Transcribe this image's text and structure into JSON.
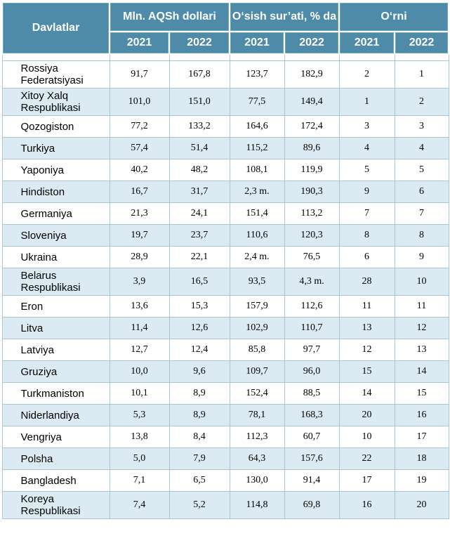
{
  "header": {
    "country_label": "Davlatlar",
    "group1_label": "Mln. AQSh dollari",
    "group2_label": "O‘sish sur’ati, % da",
    "group3_label": "O‘rni",
    "years": [
      "2021",
      "2022",
      "2021",
      "2022",
      "2021",
      "2022"
    ]
  },
  "rows": [
    {
      "country": "Rossiya Federatsiyasi",
      "usd_2021": "91,7",
      "usd_2022": "167,8",
      "growth_2021": "123,7",
      "growth_2022": "182,9",
      "rank_2021": "2",
      "rank_2022": "1"
    },
    {
      "country": "Xitoy Xalq Respublikasi",
      "usd_2021": "101,0",
      "usd_2022": "151,0",
      "growth_2021": "77,5",
      "growth_2022": "149,4",
      "rank_2021": "1",
      "rank_2022": "2"
    },
    {
      "country": "Qozogiston",
      "usd_2021": "77,2",
      "usd_2022": "133,2",
      "growth_2021": "164,6",
      "growth_2022": "172,4",
      "rank_2021": "3",
      "rank_2022": "3"
    },
    {
      "country": "Turkiya",
      "usd_2021": "57,4",
      "usd_2022": "51,4",
      "growth_2021": "115,2",
      "growth_2022": "89,6",
      "rank_2021": "4",
      "rank_2022": "4"
    },
    {
      "country": "Yaponiya",
      "usd_2021": "40,2",
      "usd_2022": "48,2",
      "growth_2021": "108,1",
      "growth_2022": "119,9",
      "rank_2021": "5",
      "rank_2022": "5"
    },
    {
      "country": "Hindiston",
      "usd_2021": "16,7",
      "usd_2022": "31,7",
      "growth_2021": "2,3 m.",
      "growth_2022": "190,3",
      "rank_2021": "9",
      "rank_2022": "6"
    },
    {
      "country": "Germaniya",
      "usd_2021": "21,3",
      "usd_2022": "24,1",
      "growth_2021": "151,4",
      "growth_2022": "113,2",
      "rank_2021": "7",
      "rank_2022": "7"
    },
    {
      "country": "Sloveniya",
      "usd_2021": "19,7",
      "usd_2022": "23,7",
      "growth_2021": "110,6",
      "growth_2022": "120,3",
      "rank_2021": "8",
      "rank_2022": "8"
    },
    {
      "country": "Ukraina",
      "usd_2021": "28,9",
      "usd_2022": "22,1",
      "growth_2021": "2,4 m.",
      "growth_2022": "76,5",
      "rank_2021": "6",
      "rank_2022": "9"
    },
    {
      "country": "Belarus Respublikasi",
      "usd_2021": "3,9",
      "usd_2022": "16,5",
      "growth_2021": "93,5",
      "growth_2022": "4,3 m.",
      "rank_2021": "28",
      "rank_2022": "10"
    },
    {
      "country": "Eron",
      "usd_2021": "13,6",
      "usd_2022": "15,3",
      "growth_2021": "157,9",
      "growth_2022": "112,6",
      "rank_2021": "11",
      "rank_2022": "11"
    },
    {
      "country": "Litva",
      "usd_2021": "11,4",
      "usd_2022": "12,6",
      "growth_2021": "102,9",
      "growth_2022": "110,7",
      "rank_2021": "13",
      "rank_2022": "12"
    },
    {
      "country": "Latviya",
      "usd_2021": "12,7",
      "usd_2022": "12,4",
      "growth_2021": "85,8",
      "growth_2022": "97,7",
      "rank_2021": "12",
      "rank_2022": "13"
    },
    {
      "country": "Gruziya",
      "usd_2021": "10,0",
      "usd_2022": "9,6",
      "growth_2021": "109,7",
      "growth_2022": "96,0",
      "rank_2021": "15",
      "rank_2022": "14"
    },
    {
      "country": "Turkmaniston",
      "usd_2021": "10,1",
      "usd_2022": "8,9",
      "growth_2021": "152,4",
      "growth_2022": "88,5",
      "rank_2021": "14",
      "rank_2022": "15"
    },
    {
      "country": "Niderlandiya",
      "usd_2021": "5,3",
      "usd_2022": "8,9",
      "growth_2021": "78,1",
      "growth_2022": "168,3",
      "rank_2021": "20",
      "rank_2022": "16"
    },
    {
      "country": "Vengriya",
      "usd_2021": "13,8",
      "usd_2022": "8,4",
      "growth_2021": "112,3",
      "growth_2022": "60,7",
      "rank_2021": "10",
      "rank_2022": "17"
    },
    {
      "country": "Polsha",
      "usd_2021": "5,0",
      "usd_2022": "7,9",
      "growth_2021": "64,3",
      "growth_2022": "157,6",
      "rank_2021": "22",
      "rank_2022": "18"
    },
    {
      "country": "Bangladesh",
      "usd_2021": "7,1",
      "usd_2022": "6,5",
      "growth_2021": "130,0",
      "growth_2022": "91,4",
      "rank_2021": "17",
      "rank_2022": "19"
    },
    {
      "country": "Koreya Respublikasi",
      "usd_2021": "7,4",
      "usd_2022": "5,2",
      "growth_2021": "114,8",
      "growth_2022": "69,8",
      "rank_2021": "16",
      "rank_2022": "20"
    }
  ],
  "colors": {
    "header_bg": "#4e8ba9",
    "header_text": "#ffffff",
    "row_alt_bg": "#dbeaf3",
    "grid_line": "#a8c6d6"
  }
}
